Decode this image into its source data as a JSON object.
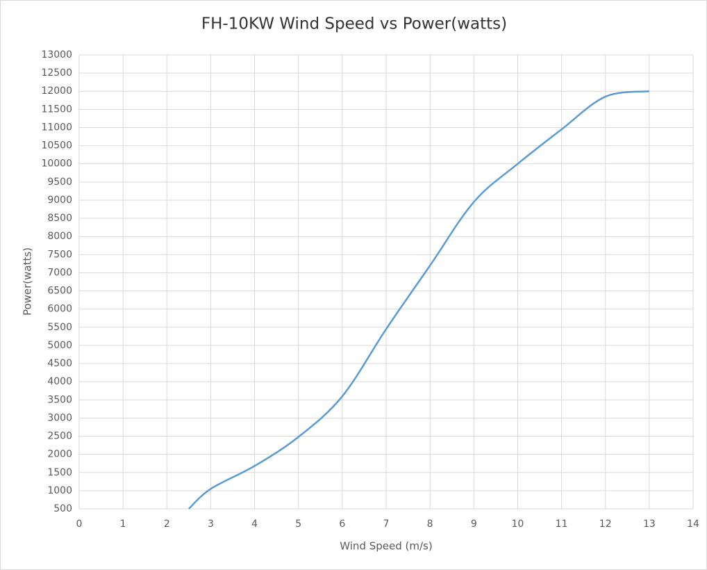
{
  "chart_data": {
    "type": "line",
    "title": "FH-10KW Wind Speed vs Power(watts)",
    "x_label": "Wind Speed (m/s)",
    "y_label": "Power(watts)",
    "x": [
      2.5,
      3,
      4,
      5,
      6,
      7,
      8,
      9,
      10,
      11,
      12,
      13
    ],
    "series": [
      {
        "name": "Power(watts)",
        "color": "#5b9bd5",
        "values": [
          500,
          1050,
          1680,
          2480,
          3600,
          5450,
          7200,
          8950,
          10000,
          10950,
          11850,
          12000
        ]
      }
    ],
    "xlim": [
      0,
      14
    ],
    "xticks": [
      0,
      1,
      2,
      3,
      4,
      5,
      6,
      7,
      8,
      9,
      10,
      11,
      12,
      13,
      14
    ],
    "ylim": [
      500,
      13000
    ],
    "yticks": [
      500,
      1000,
      1500,
      2000,
      2500,
      3000,
      3500,
      4000,
      4500,
      5000,
      5500,
      6000,
      6500,
      7000,
      7500,
      8000,
      8500,
      9000,
      9500,
      10000,
      10500,
      11000,
      11500,
      12000,
      12500,
      13000
    ],
    "grid": true,
    "smooth": true
  }
}
